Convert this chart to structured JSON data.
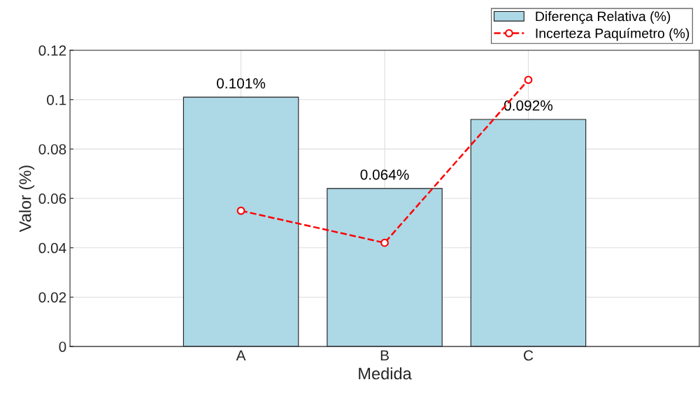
{
  "chart_data": {
    "type": "bar",
    "xlabel": "Medida",
    "ylabel": "Valor (%)",
    "categories": [
      "A",
      "B",
      "C"
    ],
    "series": [
      {
        "name": "Diferença Relativa (%)",
        "color": "#add8e6",
        "values": [
          0.101,
          0.064,
          0.092
        ],
        "value_labels": [
          "0.101%",
          "0.064%",
          "0.092%"
        ]
      },
      {
        "name": "Incerteza Paquímetro (%)",
        "type": "line",
        "color": "#ff0000",
        "values": [
          0.055,
          0.042,
          0.108
        ],
        "marker": "circle",
        "line_style": "dashed"
      }
    ],
    "ylim": [
      0,
      0.12
    ],
    "yticks": [
      0,
      0.02,
      0.04,
      0.06,
      0.08,
      0.1,
      0.12
    ],
    "grid": true,
    "legend": "top right"
  }
}
